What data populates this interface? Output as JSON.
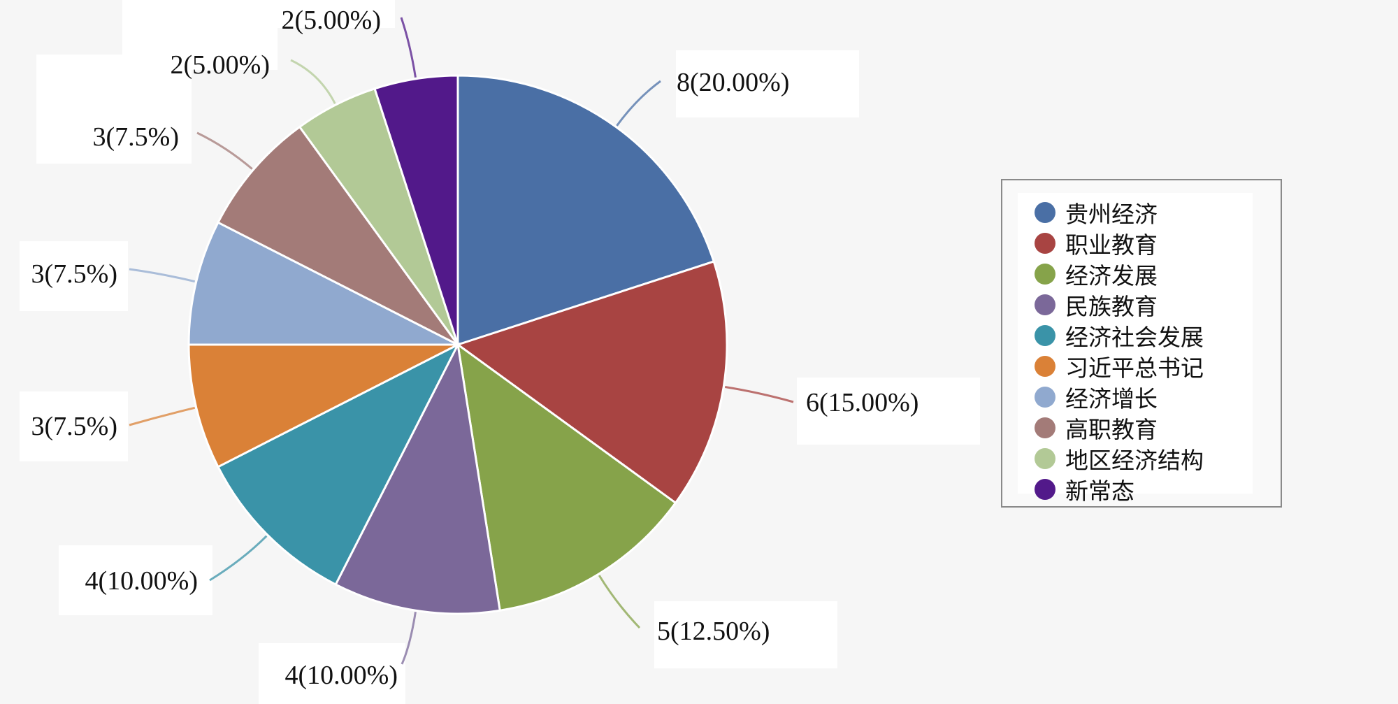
{
  "chart_data": {
    "type": "pie",
    "legend_position": "right",
    "slices": [
      {
        "name": "贵州经济",
        "value": 8,
        "label": "8(20.00%)",
        "color": "#4a6fa5"
      },
      {
        "name": "职业教育",
        "value": 6,
        "label": "6(15.00%)",
        "color": "#a84442"
      },
      {
        "name": "经济发展",
        "value": 5,
        "label": "5(12.50%)",
        "color": "#86a34a"
      },
      {
        "name": "民族教育",
        "value": 4,
        "label": "4(10.00%)",
        "color": "#7b6899"
      },
      {
        "name": "经济社会发展",
        "value": 4,
        "label": "4(10.00%)",
        "color": "#3a93a8"
      },
      {
        "name": "习近平总书记",
        "value": 3,
        "label": "3(7.5%)",
        "color": "#da8137"
      },
      {
        "name": "经济增长",
        "value": 3,
        "label": "3(7.5%)",
        "color": "#90a9cf"
      },
      {
        "name": "高职教育",
        "value": 3,
        "label": "3(7.5%)",
        "color": "#a37b78"
      },
      {
        "name": "地区经济结构",
        "value": 2,
        "label": "2(5.00%)",
        "color": "#b2c996"
      },
      {
        "name": "新常态",
        "value": 2,
        "label": "2(5.00%)",
        "color": "#52198a"
      }
    ]
  }
}
